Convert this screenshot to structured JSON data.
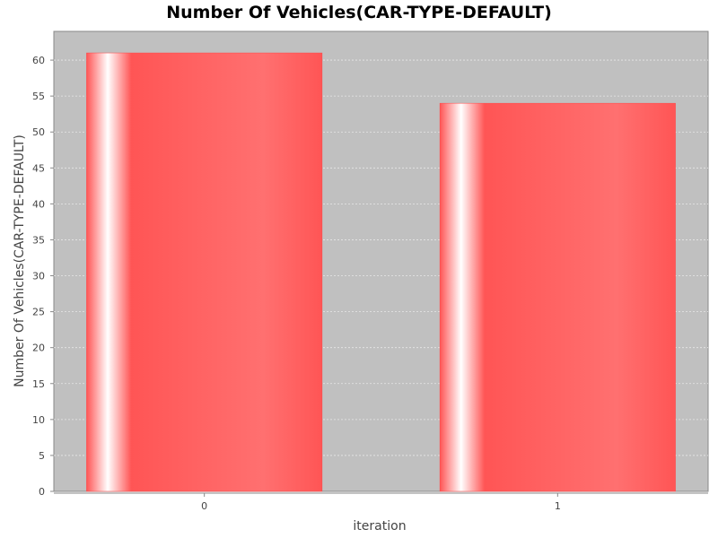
{
  "chart_data": {
    "type": "bar",
    "title": "Number Of Vehicles(CAR-TYPE-DEFAULT)",
    "xlabel": "iteration",
    "ylabel": "Number Of Vehicles(CAR-TYPE-DEFAULT)",
    "categories": [
      "0",
      "1"
    ],
    "values": [
      61,
      54
    ],
    "ylim": [
      0,
      64
    ],
    "yticks": [
      0,
      5,
      10,
      15,
      20,
      25,
      30,
      35,
      40,
      45,
      50,
      55,
      60
    ],
    "grid": true,
    "legend": "none",
    "colors": {
      "bar": "#ff5555",
      "bar_highlight": "#ffffff",
      "plot_background": "#c0c0c0",
      "gridline": "#e8e8e8",
      "axis": "#888888"
    }
  }
}
